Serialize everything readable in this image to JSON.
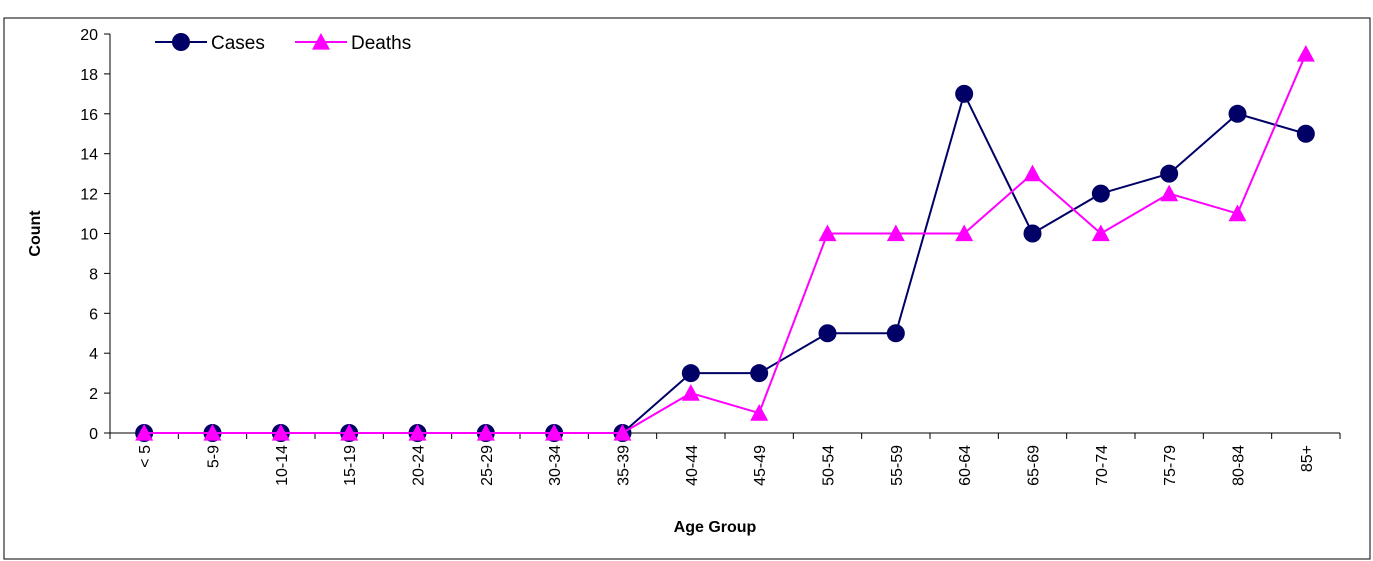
{
  "chart_data": {
    "type": "line",
    "title": "",
    "xlabel": "Age Group",
    "ylabel": "Count",
    "ylim": [
      0,
      20
    ],
    "ytick_step": 2,
    "grid": false,
    "legend_position": "top-left",
    "categories": [
      "< 5",
      "5-9",
      "10-14",
      "15-19",
      "20-24",
      "25-29",
      "30-34",
      "35-39",
      "40-44",
      "45-49",
      "50-54",
      "55-59",
      "60-64",
      "65-69",
      "70-74",
      "75-79",
      "80-84",
      "85+"
    ],
    "series": [
      {
        "name": "Cases",
        "color": "#000066",
        "marker": "circle",
        "values": [
          0,
          0,
          0,
          0,
          0,
          0,
          0,
          0,
          3,
          3,
          5,
          5,
          17,
          10,
          12,
          13,
          16,
          15
        ]
      },
      {
        "name": "Deaths",
        "color": "#ff00ff",
        "marker": "triangle",
        "values": [
          0,
          0,
          0,
          0,
          0,
          0,
          0,
          0,
          2,
          1,
          10,
          10,
          10,
          13,
          10,
          12,
          11,
          19
        ]
      }
    ]
  }
}
